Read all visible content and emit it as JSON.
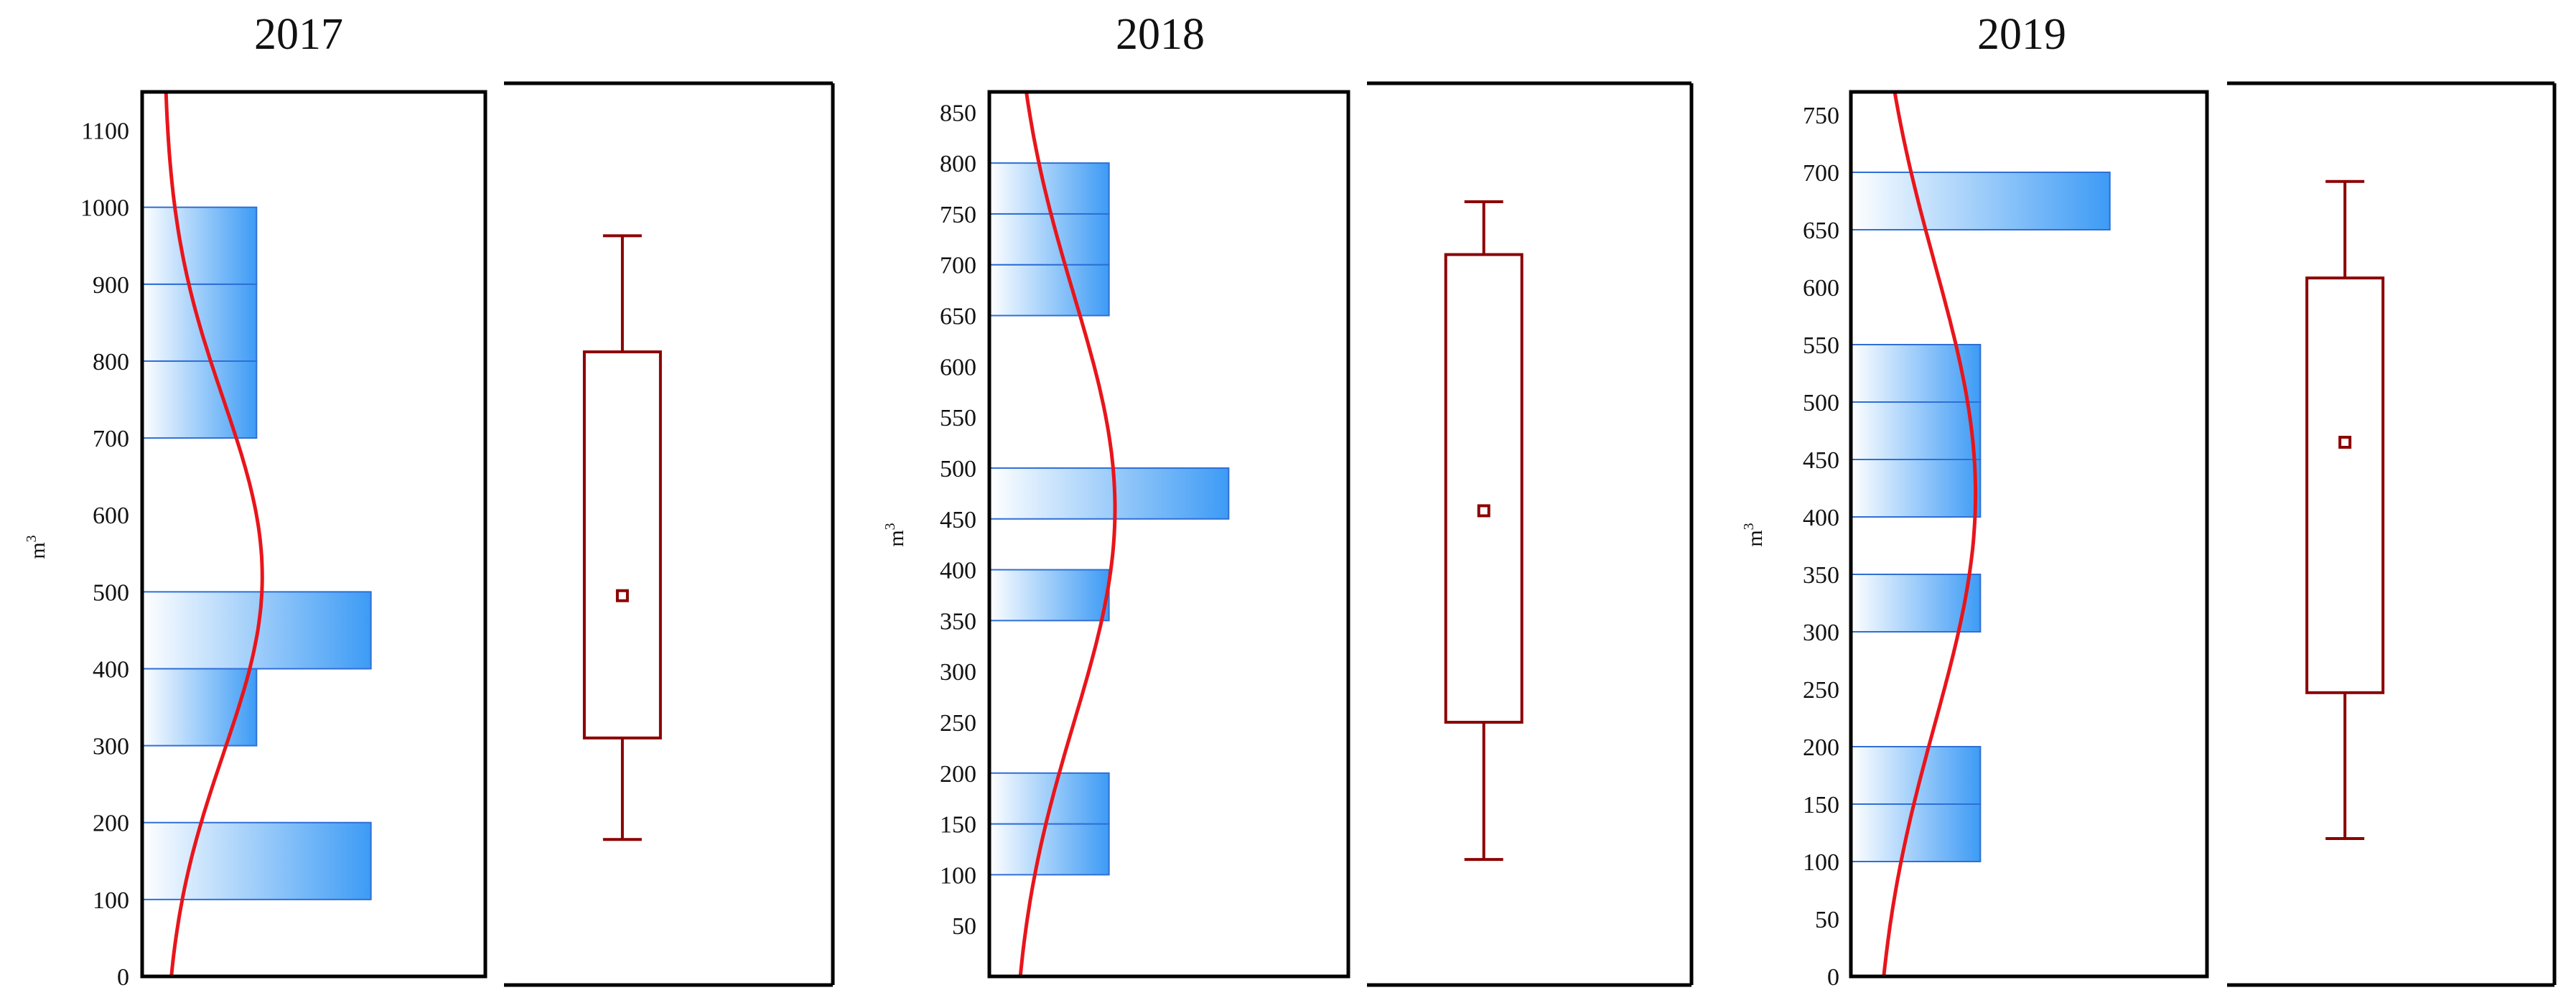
{
  "colors": {
    "frame": "#000000",
    "curve": "#e8151b",
    "box": "#8b0000",
    "bar_light": "#ffffff",
    "bar_dark": "#3d9bf5",
    "bar_stroke": "#2f6fd6"
  },
  "chart_data": [
    {
      "type": "bar",
      "orientation": "horizontal-histogram",
      "title": "2017",
      "ylabel": "m",
      "ylabel_superscript": "3",
      "ylim": [
        0,
        1150
      ],
      "ytick_labels": [
        "0",
        "100",
        "200",
        "300",
        "400",
        "500",
        "600",
        "700",
        "800",
        "900",
        "1000",
        "1100"
      ],
      "bins": [
        {
          "from": 100,
          "to": 200,
          "count": 2
        },
        {
          "from": 300,
          "to": 400,
          "count": 1
        },
        {
          "from": 400,
          "to": 500,
          "count": 2
        },
        {
          "from": 700,
          "to": 800,
          "count": 1
        },
        {
          "from": 800,
          "to": 900,
          "count": 1
        },
        {
          "from": 900,
          "to": 1000,
          "count": 1
        }
      ],
      "count_max": 3,
      "normal_curve": {
        "mean": 520,
        "sd": 230
      },
      "box": {
        "whisker_low": 178,
        "q1": 310,
        "q3": 812,
        "whisker_high": 963,
        "mean": 495
      }
    },
    {
      "type": "bar",
      "orientation": "horizontal-histogram",
      "title": "2018",
      "ylabel": "m",
      "ylabel_superscript": "3",
      "ylim": [
        0,
        870
      ],
      "ytick_labels": [
        "50",
        "100",
        "150",
        "200",
        "250",
        "300",
        "350",
        "400",
        "450",
        "500",
        "550",
        "600",
        "650",
        "700",
        "750",
        "800",
        "850"
      ],
      "bins": [
        {
          "from": 100,
          "to": 150,
          "count": 1
        },
        {
          "from": 150,
          "to": 200,
          "count": 1
        },
        {
          "from": 350,
          "to": 400,
          "count": 1
        },
        {
          "from": 450,
          "to": 500,
          "count": 2
        },
        {
          "from": 650,
          "to": 700,
          "count": 1
        },
        {
          "from": 700,
          "to": 750,
          "count": 1
        },
        {
          "from": 750,
          "to": 800,
          "count": 1
        }
      ],
      "count_max": 3,
      "normal_curve": {
        "mean": 460,
        "sd": 210
      },
      "box": {
        "whisker_low": 115,
        "q1": 250,
        "q3": 710,
        "whisker_high": 762,
        "mean": 458
      }
    },
    {
      "type": "bar",
      "orientation": "horizontal-histogram",
      "title": "2019",
      "ylabel": "m",
      "ylabel_superscript": "3",
      "ylim": [
        0,
        770
      ],
      "ytick_labels": [
        "0",
        "50",
        "100",
        "150",
        "200",
        "250",
        "300",
        "350",
        "400",
        "450",
        "500",
        "550",
        "600",
        "650",
        "700",
        "750"
      ],
      "bins": [
        {
          "from": 100,
          "to": 150,
          "count": 1
        },
        {
          "from": 150,
          "to": 200,
          "count": 1
        },
        {
          "from": 300,
          "to": 350,
          "count": 1
        },
        {
          "from": 400,
          "to": 450,
          "count": 1
        },
        {
          "from": 450,
          "to": 500,
          "count": 1
        },
        {
          "from": 500,
          "to": 550,
          "count": 1
        },
        {
          "from": 650,
          "to": 700,
          "count": 2
        }
      ],
      "count_max": 2.75,
      "normal_curve": {
        "mean": 420,
        "sd": 200
      },
      "box": {
        "whisker_low": 120,
        "q1": 247,
        "q3": 608,
        "whisker_high": 692,
        "mean": 465
      }
    }
  ]
}
